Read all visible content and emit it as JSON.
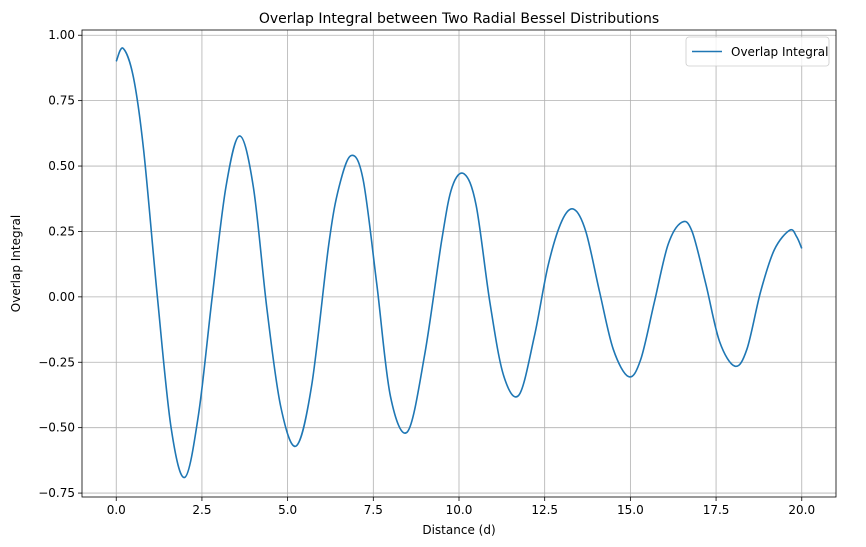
{
  "chart_data": {
    "type": "line",
    "title": "Overlap Integral between Two Radial Bessel Distributions",
    "xlabel": "Distance (d)",
    "ylabel": "Overlap Integral",
    "xlim": [
      -0.999,
      20.999
    ],
    "ylim": [
      -0.765,
      1.02
    ],
    "xticks": [
      0,
      2.5,
      5,
      7.5,
      10,
      12.5,
      15,
      17.5,
      20
    ],
    "xtick_labels": [
      "0.0",
      "2.5",
      "5.0",
      "7.5",
      "10.0",
      "12.5",
      "15.0",
      "17.5",
      "20.0"
    ],
    "yticks": [
      -0.75,
      -0.5,
      -0.25,
      0,
      0.25,
      0.5,
      0.75,
      1.0
    ],
    "ytick_labels": [
      "−0.75",
      "−0.50",
      "−0.25",
      "0.00",
      "0.25",
      "0.50",
      "0.75",
      "1.00"
    ],
    "grid": true,
    "legend_position": "top-right",
    "series": [
      {
        "name": "Overlap Integral",
        "color": "#1f77b4",
        "x": [
          0,
          0.2,
          0.5,
          0.8,
          1.2,
          1.6,
          2.0,
          2.4,
          2.8,
          3.2,
          3.6,
          4.0,
          4.4,
          4.8,
          5.25,
          5.7,
          6.2,
          6.5,
          6.85,
          7.2,
          7.6,
          8.0,
          8.5,
          9.0,
          9.5,
          9.8,
          10.15,
          10.5,
          10.9,
          11.3,
          11.75,
          12.2,
          12.6,
          13.0,
          13.35,
          13.7,
          14.1,
          14.5,
          14.95,
          15.3,
          15.7,
          16.1,
          16.5,
          16.8,
          17.2,
          17.6,
          18.05,
          18.4,
          18.8,
          19.2,
          19.65,
          19.85,
          20.0
        ],
        "y": [
          0.9,
          0.95,
          0.84,
          0.56,
          0.0,
          -0.5,
          -0.69,
          -0.45,
          0.0,
          0.42,
          0.615,
          0.42,
          -0.05,
          -0.42,
          -0.57,
          -0.34,
          0.2,
          0.42,
          0.54,
          0.45,
          0.05,
          -0.38,
          -0.515,
          -0.22,
          0.22,
          0.42,
          0.47,
          0.35,
          -0.02,
          -0.3,
          -0.375,
          -0.15,
          0.12,
          0.29,
          0.335,
          0.25,
          0.02,
          -0.2,
          -0.305,
          -0.24,
          -0.02,
          0.2,
          0.285,
          0.25,
          0.05,
          -0.17,
          -0.265,
          -0.2,
          0.02,
          0.18,
          0.255,
          0.23,
          0.185
        ]
      }
    ]
  }
}
